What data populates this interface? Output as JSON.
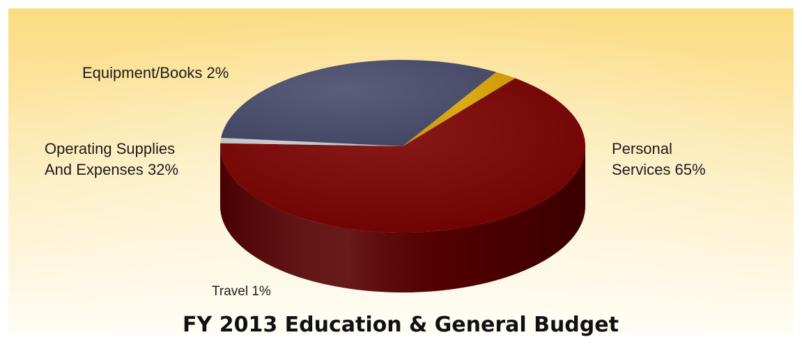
{
  "chart_data": {
    "type": "pie",
    "title": "FY 2013 Education & General Budget",
    "slices": [
      {
        "label_lines": [
          "Personal",
          "Services 65%"
        ],
        "value": 65,
        "color": "#7a0000"
      },
      {
        "label_lines": [
          "Travel 1%"
        ],
        "value": 1,
        "color": "#cfcfd2"
      },
      {
        "label_lines": [
          "Operating Supplies",
          "And Expenses 32%"
        ],
        "value": 32,
        "color": "#484c6c"
      },
      {
        "label_lines": [
          "Equipment/Books 2%"
        ],
        "value": 2,
        "color": "#dca500"
      }
    ]
  },
  "colors": {
    "background_top": "#fbdc82",
    "background_bottom": "#fffdf6"
  }
}
